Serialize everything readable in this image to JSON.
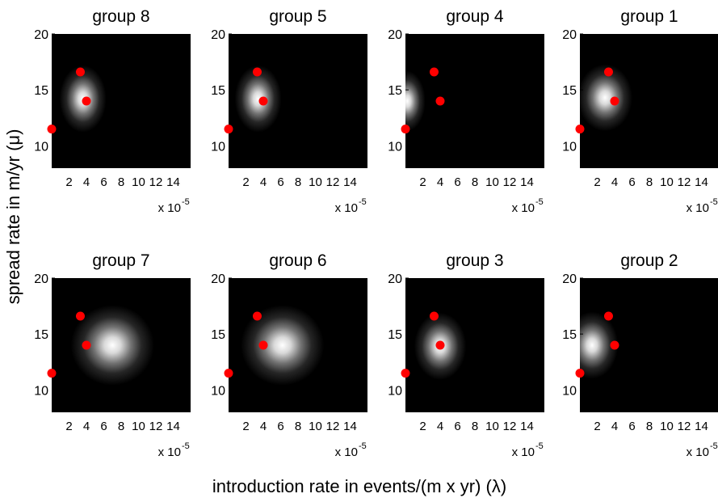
{
  "figure": {
    "ylabel": "spread rate in m/yr (μ)",
    "xlabel": "introduction rate in events/(m x yr) (λ)"
  },
  "chart_data": [
    {
      "type": "heatmap",
      "title": "group 8",
      "x_ticks": [
        "2",
        "4",
        "6",
        "8",
        "10",
        "12",
        "14"
      ],
      "y_ticks": [
        "10",
        "15",
        "20"
      ],
      "xlim": [
        0,
        16
      ],
      "ylim": [
        8,
        20
      ],
      "x_exponent": "x 10",
      "x_exponent_power": "-5",
      "heat_center": [
        3.6,
        14.2
      ],
      "heat_spread": [
        1.8,
        2.0
      ],
      "points": [
        {
          "x": 3.3,
          "y": 16.6
        },
        {
          "x": 4.0,
          "y": 14.0
        },
        {
          "x": 0.0,
          "y": 11.5
        }
      ],
      "point_color": "#ff0000"
    },
    {
      "type": "heatmap",
      "title": "group 5",
      "x_ticks": [
        "2",
        "4",
        "6",
        "8",
        "10",
        "12",
        "14"
      ],
      "y_ticks": [
        "10",
        "15",
        "20"
      ],
      "xlim": [
        0,
        16
      ],
      "ylim": [
        8,
        20
      ],
      "x_exponent": "x 10",
      "x_exponent_power": "-5",
      "heat_center": [
        3.4,
        14.2
      ],
      "heat_spread": [
        1.8,
        2.0
      ],
      "points": [
        {
          "x": 3.3,
          "y": 16.6
        },
        {
          "x": 4.0,
          "y": 14.0
        },
        {
          "x": 0.0,
          "y": 11.5
        }
      ],
      "point_color": "#ff0000"
    },
    {
      "type": "heatmap",
      "title": "group 4",
      "x_ticks": [
        "2",
        "4",
        "6",
        "8",
        "10",
        "12",
        "14"
      ],
      "y_ticks": [
        "10",
        "15",
        "20"
      ],
      "xlim": [
        0,
        16
      ],
      "ylim": [
        8,
        20
      ],
      "x_exponent": "x 10",
      "x_exponent_power": "-5",
      "heat_center": [
        0.2,
        14.0
      ],
      "heat_spread": [
        1.4,
        1.8
      ],
      "points": [
        {
          "x": 3.3,
          "y": 16.6
        },
        {
          "x": 4.0,
          "y": 14.0
        },
        {
          "x": 0.0,
          "y": 11.5
        }
      ],
      "point_color": "#ff0000"
    },
    {
      "type": "heatmap",
      "title": "group 1",
      "x_ticks": [
        "2",
        "4",
        "6",
        "8",
        "10",
        "12",
        "14"
      ],
      "y_ticks": [
        "10",
        "15",
        "20"
      ],
      "xlim": [
        0,
        16
      ],
      "ylim": [
        8,
        20
      ],
      "x_exponent": "x 10",
      "x_exponent_power": "-5",
      "heat_center": [
        2.9,
        14.3
      ],
      "heat_spread": [
        2.1,
        2.0
      ],
      "points": [
        {
          "x": 3.3,
          "y": 16.6
        },
        {
          "x": 4.0,
          "y": 14.0
        },
        {
          "x": 0.0,
          "y": 11.5
        }
      ],
      "point_color": "#ff0000"
    },
    {
      "type": "heatmap",
      "title": "group 7",
      "x_ticks": [
        "2",
        "4",
        "6",
        "8",
        "10",
        "12",
        "14"
      ],
      "y_ticks": [
        "10",
        "15",
        "20"
      ],
      "xlim": [
        0,
        16
      ],
      "ylim": [
        8,
        20
      ],
      "x_exponent": "x 10",
      "x_exponent_power": "-5",
      "heat_center": [
        7.0,
        14.0
      ],
      "heat_spread": [
        3.2,
        2.4
      ],
      "points": [
        {
          "x": 3.3,
          "y": 16.6
        },
        {
          "x": 4.0,
          "y": 14.0
        },
        {
          "x": 0.0,
          "y": 11.5
        }
      ],
      "point_color": "#ff0000"
    },
    {
      "type": "heatmap",
      "title": "group 6",
      "x_ticks": [
        "2",
        "4",
        "6",
        "8",
        "10",
        "12",
        "14"
      ],
      "y_ticks": [
        "10",
        "15",
        "20"
      ],
      "xlim": [
        0,
        16
      ],
      "ylim": [
        8,
        20
      ],
      "x_exponent": "x 10",
      "x_exponent_power": "-5",
      "heat_center": [
        6.2,
        14.0
      ],
      "heat_spread": [
        3.2,
        2.4
      ],
      "points": [
        {
          "x": 3.3,
          "y": 16.6
        },
        {
          "x": 4.0,
          "y": 14.0
        },
        {
          "x": 0.0,
          "y": 11.5
        }
      ],
      "point_color": "#ff0000"
    },
    {
      "type": "heatmap",
      "title": "group 3",
      "x_ticks": [
        "2",
        "4",
        "6",
        "8",
        "10",
        "12",
        "14"
      ],
      "y_ticks": [
        "10",
        "15",
        "20"
      ],
      "xlim": [
        0,
        16
      ],
      "ylim": [
        8,
        20
      ],
      "x_exponent": "x 10",
      "x_exponent_power": "-5",
      "heat_center": [
        4.0,
        13.9
      ],
      "heat_spread": [
        2.0,
        2.0
      ],
      "points": [
        {
          "x": 3.3,
          "y": 16.6
        },
        {
          "x": 4.0,
          "y": 14.0
        },
        {
          "x": 0.0,
          "y": 11.5
        }
      ],
      "point_color": "#ff0000"
    },
    {
      "type": "heatmap",
      "title": "group 2",
      "x_ticks": [
        "2",
        "4",
        "6",
        "8",
        "10",
        "12",
        "14"
      ],
      "y_ticks": [
        "10",
        "15",
        "20"
      ],
      "xlim": [
        0,
        16
      ],
      "ylim": [
        8,
        20
      ],
      "x_exponent": "x 10",
      "x_exponent_power": "-5",
      "heat_center": [
        1.4,
        14.0
      ],
      "heat_spread": [
        2.0,
        2.0
      ],
      "points": [
        {
          "x": 3.3,
          "y": 16.6
        },
        {
          "x": 4.0,
          "y": 14.0
        },
        {
          "x": 0.0,
          "y": 11.5
        }
      ],
      "point_color": "#ff0000"
    }
  ]
}
